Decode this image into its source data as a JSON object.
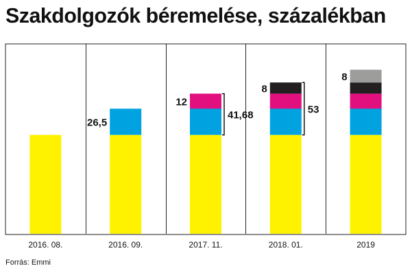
{
  "title": "Szakdolgozók béremelése, százalékban",
  "source": "Forrás: Emmi",
  "chart_data": {
    "type": "bar",
    "stacked": true,
    "categories": [
      "2016. 08.",
      "2016. 09.",
      "2017. 11.",
      "2018. 01.",
      "2019"
    ],
    "series": [
      {
        "color": "#fff200",
        "values": [
          100,
          100,
          100,
          100,
          100
        ]
      },
      {
        "color": "#00a3e0",
        "values": [
          0,
          26.5,
          26.5,
          26.5,
          26.5
        ]
      },
      {
        "color": "#e2107f",
        "values": [
          0,
          0,
          15.18,
          15.18,
          15.18
        ]
      },
      {
        "color": "#231f20",
        "values": [
          0,
          0,
          0,
          11.3,
          11.3
        ]
      },
      {
        "color": "#9d9d9c",
        "values": [
          0,
          0,
          0,
          0,
          12.9
        ]
      }
    ],
    "data_labels": [
      {
        "text": "26,5",
        "category": "2016. 09.",
        "segment": 1
      },
      {
        "text": "12",
        "category": "2017. 11.",
        "segment": 2
      },
      {
        "text": "8",
        "category": "2018. 01.",
        "segment": 3
      },
      {
        "text": "8",
        "category": "2019",
        "segment": 4
      }
    ],
    "brackets": [
      {
        "text": "41,68",
        "category": "2017. 11.",
        "from_segment": 1,
        "to_segment": 2
      },
      {
        "text": "53",
        "category": "2018. 01.",
        "from_segment": 1,
        "to_segment": 3
      }
    ],
    "ylim": [
      0,
      192
    ],
    "grid": false,
    "legend": "none"
  }
}
